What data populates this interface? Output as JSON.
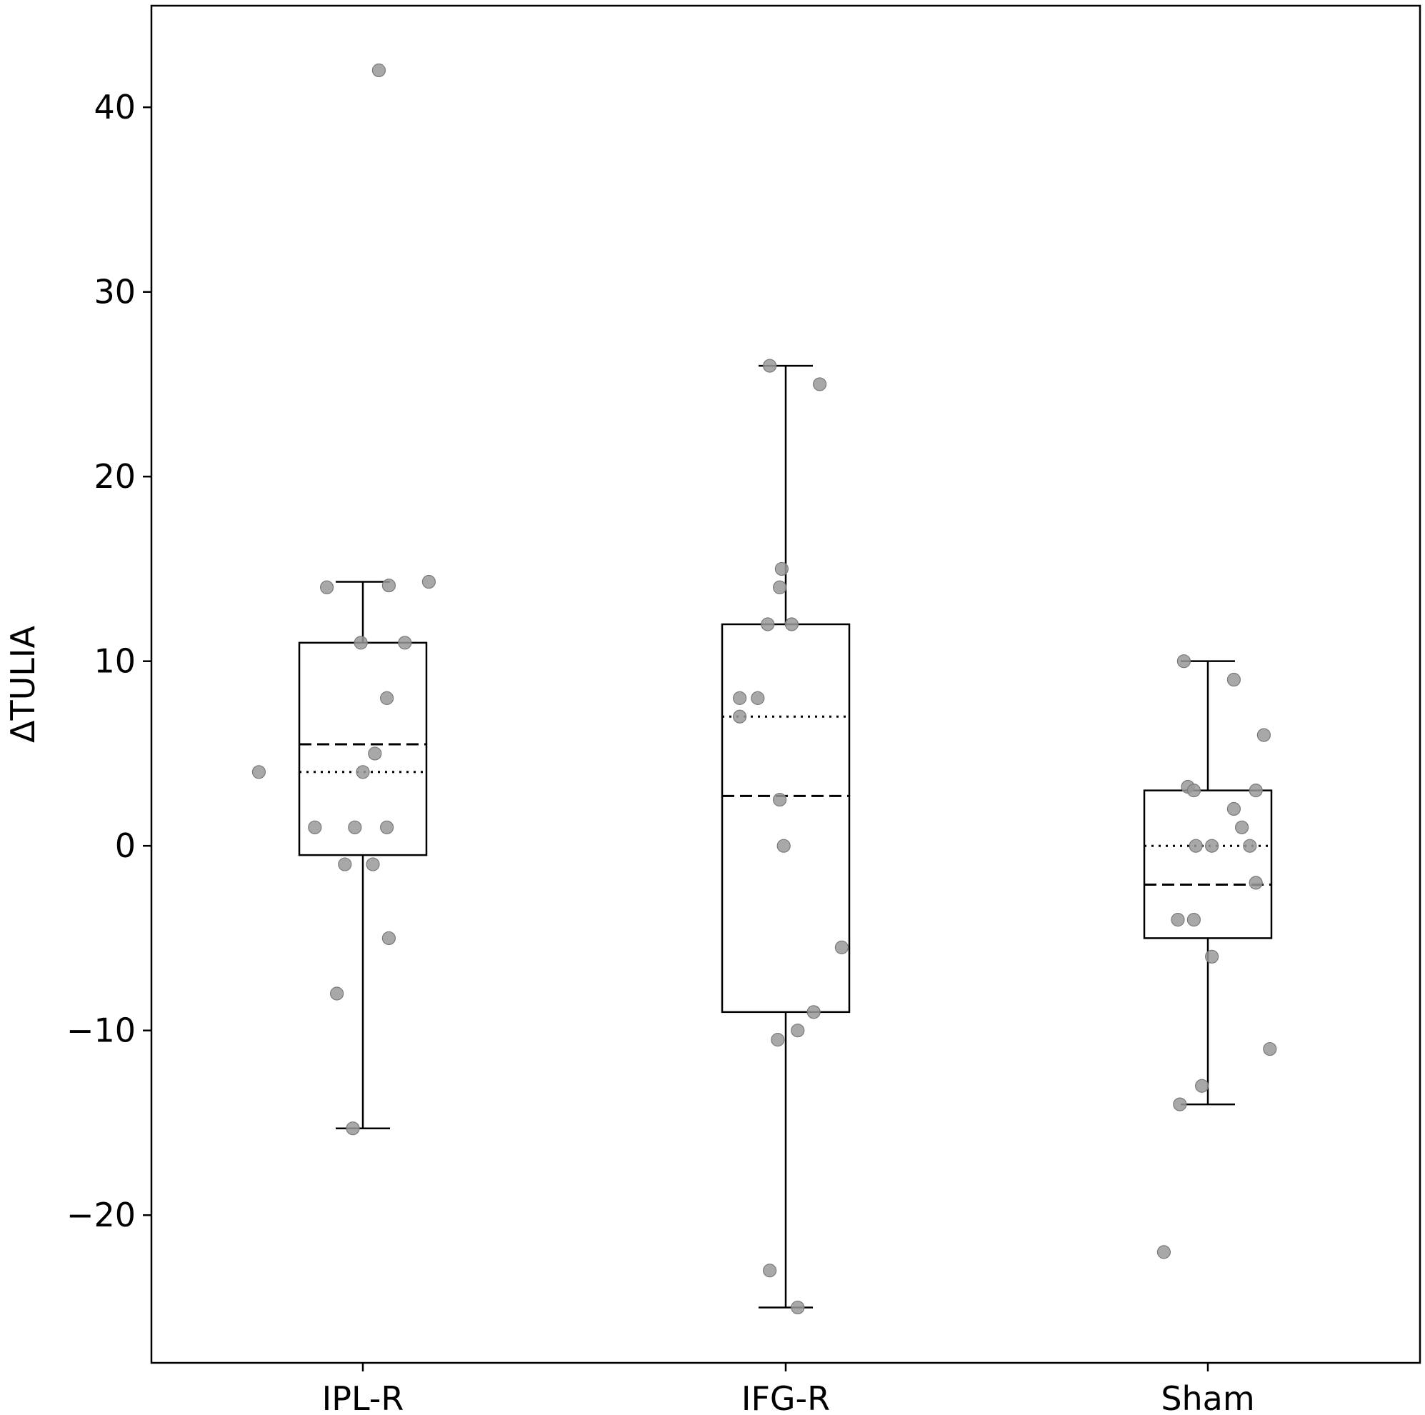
{
  "chart_data": {
    "type": "box",
    "title": "",
    "xlabel": "",
    "ylabel": "ΔTULIA",
    "categories": [
      "IPL-R",
      "IFG-R",
      "Sham"
    ],
    "ylim": [
      -28,
      45.5
    ],
    "yticks": [
      -20,
      -10,
      0,
      10,
      20,
      30,
      40
    ],
    "ytick_labels": [
      "−20",
      "−10",
      "0",
      "10",
      "20",
      "30",
      "40"
    ],
    "grid": false,
    "legend": "none",
    "point_color": "#999999",
    "line_color": "#000000",
    "boxes": [
      {
        "category": "IPL-R",
        "whisker_low": -15.3,
        "q1": -0.5,
        "median": 4,
        "mean": 5.5,
        "q3": 11,
        "whisker_high": 14.3
      },
      {
        "category": "IFG-R",
        "whisker_low": -25,
        "q1": -9,
        "median": 7,
        "mean": 2.7,
        "q3": 12,
        "whisker_high": 26
      },
      {
        "category": "Sham",
        "whisker_low": -14,
        "q1": -5,
        "median": 0,
        "mean": -2.1,
        "q3": 3,
        "whisker_high": 10
      }
    ],
    "points": [
      {
        "category": "IPL-R",
        "values": [
          42,
          14.3,
          14,
          14.1,
          11,
          11,
          8,
          5,
          4,
          4,
          1,
          1,
          1,
          -1,
          -1,
          -5,
          -8,
          -15.3
        ],
        "jitter": [
          0.08,
          0.33,
          -0.18,
          0.13,
          -0.01,
          0.21,
          0.12,
          0.06,
          0.0,
          -0.52,
          -0.24,
          -0.04,
          0.12,
          -0.09,
          0.05,
          0.13,
          -0.13,
          -0.05
        ]
      },
      {
        "category": "IFG-R",
        "values": [
          26,
          25,
          15,
          14,
          12,
          12,
          8,
          8,
          7,
          2.5,
          0,
          -5.5,
          -9,
          -10,
          -10.5,
          -23,
          -25
        ],
        "jitter": [
          -0.08,
          0.17,
          -0.02,
          -0.03,
          -0.09,
          0.03,
          -0.23,
          -0.14,
          -0.23,
          -0.03,
          -0.01,
          0.28,
          0.14,
          0.06,
          -0.04,
          -0.08,
          0.06
        ]
      },
      {
        "category": "Sham",
        "values": [
          10,
          9,
          6,
          3.2,
          3,
          3,
          2,
          1,
          0,
          0,
          0,
          -2,
          -4,
          -4,
          -6,
          -11,
          -13,
          -14,
          -22
        ],
        "jitter": [
          -0.12,
          0.13,
          0.28,
          -0.1,
          -0.07,
          0.24,
          0.13,
          0.17,
          -0.06,
          0.02,
          0.21,
          0.24,
          -0.15,
          -0.07,
          0.02,
          0.31,
          -0.03,
          -0.14,
          -0.22
        ]
      }
    ]
  }
}
